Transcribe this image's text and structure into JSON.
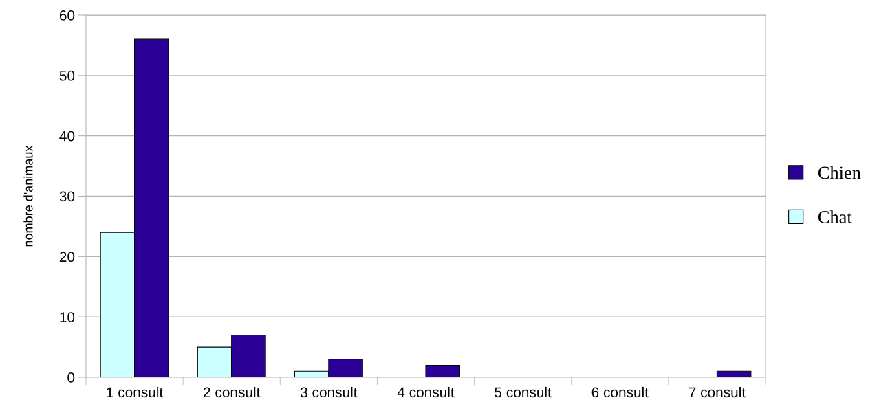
{
  "chart_data": {
    "type": "bar",
    "ylabel": "nombre d'animaux",
    "categories": [
      "1 consult",
      "2 consult",
      "3 consult",
      "4 consult",
      "5 consult",
      "6 consult",
      "7 consult"
    ],
    "series": [
      {
        "name": "Chat",
        "color": "#ccffff",
        "values": [
          24,
          5,
          1,
          null,
          null,
          null,
          null
        ]
      },
      {
        "name": "Chien",
        "color": "#2a0096",
        "values": [
          56,
          7,
          3,
          2,
          null,
          null,
          1
        ]
      }
    ],
    "ylim": [
      0,
      60
    ],
    "yticks": [
      0,
      10,
      20,
      30,
      40,
      50,
      60
    ],
    "grid": "y",
    "legend": "right"
  }
}
